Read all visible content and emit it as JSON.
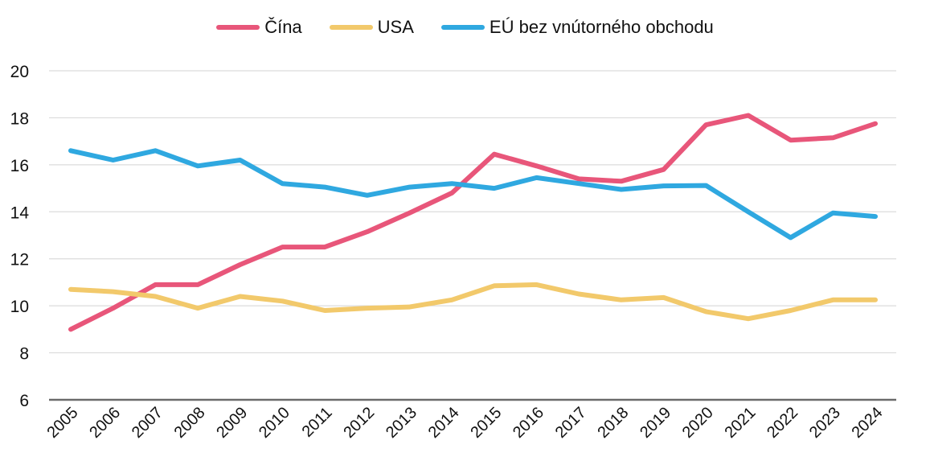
{
  "chart_data": {
    "type": "line",
    "title": "",
    "xlabel": "",
    "ylabel": "",
    "ylim": [
      6,
      20
    ],
    "yticks": [
      "6",
      "8",
      "10",
      "12",
      "14",
      "16",
      "18",
      "20"
    ],
    "grid": true,
    "legend_position": "top-center",
    "categories": [
      "2005",
      "2006",
      "2007",
      "2008",
      "2009",
      "2010",
      "2011",
      "2012",
      "2013",
      "2014",
      "2015",
      "2016",
      "2017",
      "2018",
      "2019",
      "2020",
      "2021",
      "2022",
      "2023",
      "2024"
    ],
    "series": [
      {
        "name": "Čína",
        "color": "#e8567a",
        "values": [
          9.0,
          9.9,
          10.9,
          10.9,
          11.75,
          12.5,
          12.5,
          13.15,
          13.95,
          14.8,
          16.45,
          15.95,
          15.4,
          15.3,
          15.8,
          17.7,
          18.1,
          17.05,
          17.15,
          17.75
        ]
      },
      {
        "name": "USA",
        "color": "#f2c96b",
        "values": [
          10.7,
          10.6,
          10.4,
          9.9,
          10.4,
          10.2,
          9.8,
          9.9,
          9.95,
          10.25,
          10.85,
          10.9,
          10.5,
          10.25,
          10.35,
          9.75,
          9.45,
          9.8,
          10.25,
          10.25
        ]
      },
      {
        "name": "EÚ bez vnútorného obchodu",
        "color": "#2fa8e0",
        "values": [
          16.6,
          16.2,
          16.6,
          15.95,
          16.2,
          15.2,
          15.05,
          14.7,
          15.05,
          15.2,
          15.0,
          15.45,
          15.2,
          14.95,
          15.1,
          15.12,
          14.0,
          12.9,
          13.95,
          13.8
        ]
      }
    ]
  }
}
